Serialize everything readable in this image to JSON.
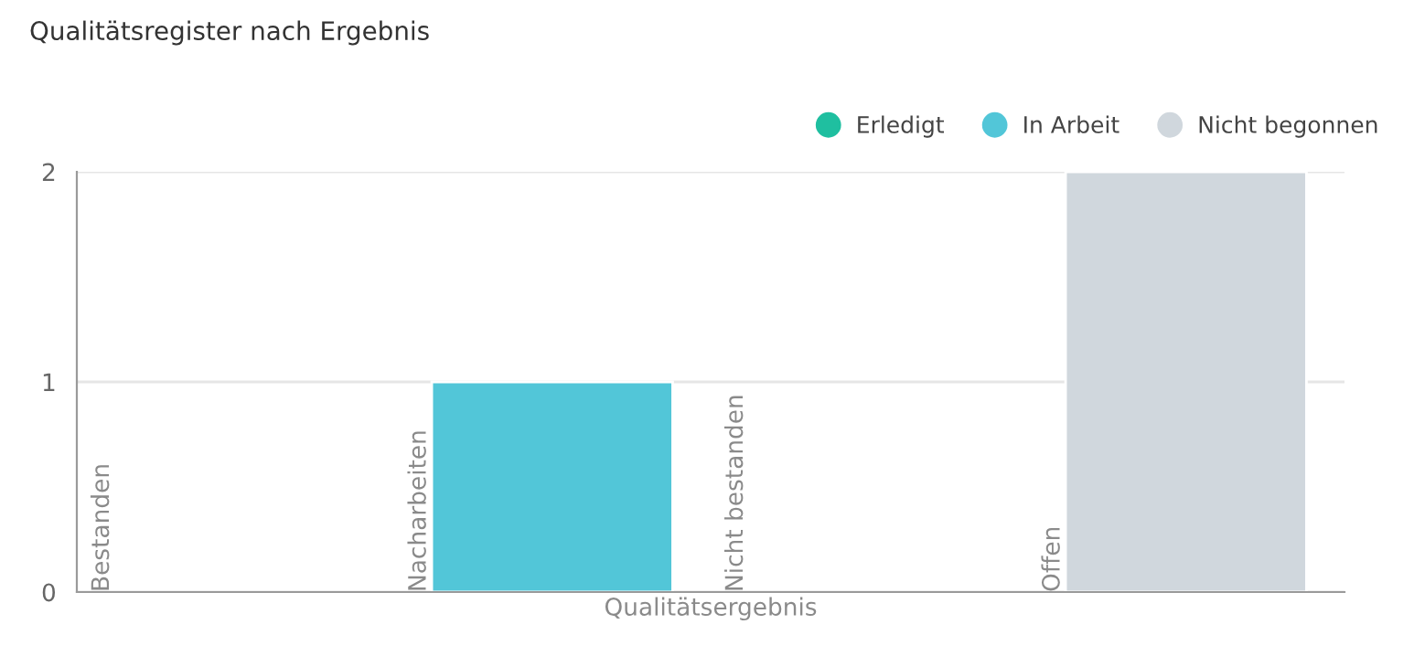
{
  "chart_data": {
    "type": "bar",
    "title": "Qualitätsregister nach Ergebnis",
    "xlabel": "Qualitätsergebnis",
    "categories": [
      "Bestanden",
      "Nacharbeiten",
      "Nicht bestanden",
      "Offen"
    ],
    "stacked": true,
    "series": [
      {
        "name": "Erledigt",
        "color": "#1fbfa0",
        "values": [
          null,
          null,
          null,
          null
        ]
      },
      {
        "name": "In Arbeit",
        "color": "#52c6d8",
        "values": [
          null,
          1,
          null,
          null
        ]
      },
      {
        "name": "Nicht begonnen",
        "color": "#d0d7dd",
        "values": [
          null,
          null,
          null,
          2
        ]
      }
    ],
    "ylim": [
      0,
      2
    ],
    "yticks": [
      0,
      1,
      2
    ],
    "grid": "y",
    "legend": "top right"
  }
}
